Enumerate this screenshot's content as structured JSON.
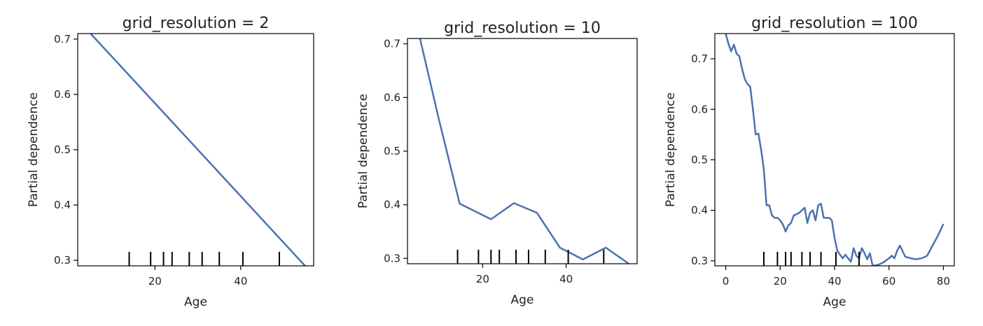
{
  "chart_data": [
    {
      "type": "line",
      "title": "grid_resolution = 2",
      "xlabel": "Age",
      "ylabel": "Partial dependence",
      "xlim": [
        2,
        57
      ],
      "ylim": [
        0.29,
        0.71
      ],
      "xticks": [
        20,
        40
      ],
      "yticks": [
        0.3,
        0.4,
        0.5,
        0.6,
        0.7
      ],
      "line_color": "#4c72b0",
      "series": [
        {
          "x": [
            5,
            55
          ],
          "y": [
            0.71,
            0.29
          ]
        }
      ],
      "rug": [
        14,
        19,
        22,
        24,
        28,
        31,
        35,
        40.5,
        49
      ]
    },
    {
      "type": "line",
      "title": "grid_resolution = 10",
      "xlabel": "Age",
      "ylabel": "Partial dependence",
      "xlim": [
        2,
        57
      ],
      "ylim": [
        0.29,
        0.71
      ],
      "xticks": [
        20,
        40
      ],
      "yticks": [
        0.3,
        0.4,
        0.5,
        0.6,
        0.7
      ],
      "line_color": "#4c72b0",
      "series": [
        {
          "x": [
            5,
            9.5,
            14.5,
            22,
            27.5,
            33,
            38.5,
            44,
            49.5,
            55
          ],
          "y": [
            0.71,
            0.56,
            0.402,
            0.373,
            0.403,
            0.385,
            0.32,
            0.298,
            0.32,
            0.29
          ]
        }
      ],
      "rug": [
        14,
        19,
        22,
        24,
        28,
        31,
        35,
        40.5,
        49
      ]
    },
    {
      "type": "line",
      "title": "grid_resolution = 100",
      "xlabel": "Age",
      "ylabel": "Partial dependence",
      "xlim": [
        -4,
        84
      ],
      "ylim": [
        0.29,
        0.75
      ],
      "xticks": [
        0,
        20,
        40,
        60,
        80
      ],
      "yticks": [
        0.3,
        0.4,
        0.5,
        0.6,
        0.7
      ],
      "line_color": "#4c72b0",
      "series": [
        {
          "x": [
            0,
            1,
            2,
            3,
            4,
            5,
            6,
            7,
            8,
            9,
            10,
            11,
            12,
            13,
            14,
            15,
            16,
            17,
            18,
            19,
            20,
            21,
            22,
            23,
            24,
            25,
            26,
            27,
            28,
            29,
            30,
            31,
            32,
            33,
            34,
            35,
            36,
            37,
            38,
            39,
            40,
            41,
            42,
            43,
            44,
            45,
            46,
            47,
            48,
            49,
            50,
            51,
            52,
            53,
            54,
            56,
            58,
            60,
            61,
            62,
            63,
            64,
            66,
            68,
            70,
            72,
            74,
            76,
            78,
            80
          ],
          "y": [
            0.75,
            0.73,
            0.715,
            0.728,
            0.71,
            0.705,
            0.68,
            0.66,
            0.65,
            0.645,
            0.6,
            0.55,
            0.552,
            0.52,
            0.48,
            0.41,
            0.41,
            0.39,
            0.385,
            0.385,
            0.38,
            0.372,
            0.358,
            0.37,
            0.375,
            0.39,
            0.392,
            0.395,
            0.4,
            0.405,
            0.375,
            0.395,
            0.4,
            0.38,
            0.41,
            0.413,
            0.385,
            0.385,
            0.385,
            0.38,
            0.345,
            0.32,
            0.312,
            0.305,
            0.312,
            0.305,
            0.298,
            0.325,
            0.31,
            0.305,
            0.325,
            0.315,
            0.303,
            0.315,
            0.29,
            0.292,
            0.297,
            0.305,
            0.31,
            0.305,
            0.32,
            0.33,
            0.308,
            0.305,
            0.303,
            0.305,
            0.31,
            0.33,
            0.35,
            0.373
          ]
        }
      ],
      "rug": [
        14,
        19,
        22,
        24,
        28,
        31,
        35,
        40.5,
        49
      ]
    }
  ]
}
